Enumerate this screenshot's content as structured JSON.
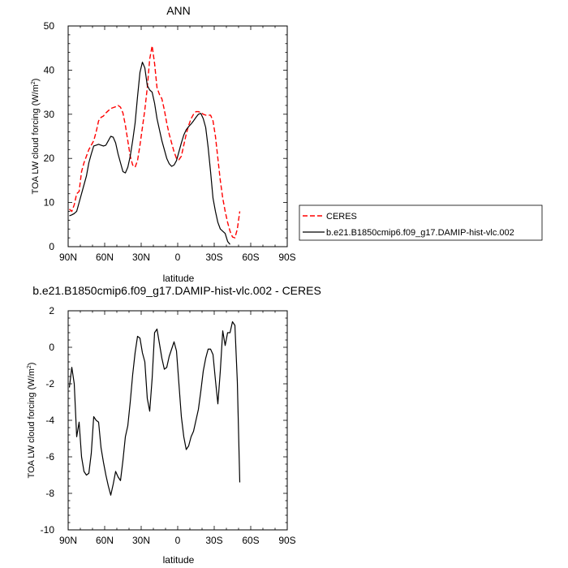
{
  "chart_data": [
    {
      "type": "line",
      "title": "ANN",
      "xlabel": "latitude",
      "ylabel": "TOA LW cloud forcing (W/m",
      "ylabel_sup": "2",
      "ylabel_close": ")",
      "xlim": [
        90,
        -90
      ],
      "ylim": [
        0,
        50
      ],
      "xticks": [
        {
          "value": 90,
          "label": "90N"
        },
        {
          "value": 60,
          "label": "60N"
        },
        {
          "value": 30,
          "label": "30N"
        },
        {
          "value": 0,
          "label": "0"
        },
        {
          "value": -30,
          "label": "30S"
        },
        {
          "value": -60,
          "label": "60S"
        },
        {
          "value": -90,
          "label": "90S"
        }
      ],
      "yticks": [
        0,
        10,
        20,
        30,
        40,
        50
      ],
      "legend_position": "right",
      "series": [
        {
          "name": "CERES",
          "color": "#ff0000",
          "dash": "dashed",
          "points": [
            [
              89,
              8.5
            ],
            [
              87,
              8
            ],
            [
              85,
              9.5
            ],
            [
              83,
              12
            ],
            [
              81,
              12.5
            ],
            [
              79,
              17
            ],
            [
              77,
              19
            ],
            [
              75,
              20.5
            ],
            [
              73,
              22
            ],
            [
              71,
              23
            ],
            [
              69,
              24
            ],
            [
              67,
              26
            ],
            [
              65,
              28.5
            ],
            [
              63,
              29.3
            ],
            [
              61,
              29.6
            ],
            [
              59,
              30.3
            ],
            [
              57,
              30.8
            ],
            [
              55,
              31.3
            ],
            [
              53,
              31.5
            ],
            [
              51,
              31.7
            ],
            [
              49,
              32
            ],
            [
              47,
              31.6
            ],
            [
              45,
              30.3
            ],
            [
              43,
              27.5
            ],
            [
              41,
              24
            ],
            [
              39,
              20.5
            ],
            [
              37,
              18.5
            ],
            [
              35,
              18
            ],
            [
              33,
              19.5
            ],
            [
              31,
              23
            ],
            [
              29,
              27
            ],
            [
              27,
              31
            ],
            [
              25,
              36
            ],
            [
              23,
              42.5
            ],
            [
              21,
              45.5
            ],
            [
              19,
              41.5
            ],
            [
              17,
              36
            ],
            [
              15,
              34.5
            ],
            [
              13,
              33.5
            ],
            [
              11,
              31
            ],
            [
              9,
              28
            ],
            [
              7,
              25.5
            ],
            [
              5,
              23.5
            ],
            [
              3,
              21.5
            ],
            [
              1,
              20
            ],
            [
              -1,
              19.7
            ],
            [
              -3,
              20.5
            ],
            [
              -5,
              23
            ],
            [
              -7,
              25.5
            ],
            [
              -9,
              27.5
            ],
            [
              -11,
              29
            ],
            [
              -13,
              30
            ],
            [
              -15,
              30.6
            ],
            [
              -17,
              30.6
            ],
            [
              -19,
              30.4
            ],
            [
              -21,
              30
            ],
            [
              -23,
              29.8
            ],
            [
              -25,
              29.8
            ],
            [
              -27,
              29.8
            ],
            [
              -29,
              28.5
            ],
            [
              -31,
              25
            ],
            [
              -33,
              20
            ],
            [
              -35,
              15
            ],
            [
              -37,
              11
            ],
            [
              -39,
              8
            ],
            [
              -41,
              5.5
            ],
            [
              -43,
              3.5
            ],
            [
              -45,
              2.2
            ],
            [
              -47,
              2
            ],
            [
              -49,
              4
            ],
            [
              -51,
              8
            ]
          ]
        },
        {
          "name": "b.e21.B1850cmip6.f09_g17.DAMIP-hist-vlc.002",
          "color": "#000000",
          "dash": "solid",
          "points": [
            [
              89,
              7
            ],
            [
              87,
              7.2
            ],
            [
              85,
              7.5
            ],
            [
              83,
              8
            ],
            [
              81,
              10
            ],
            [
              79,
              12
            ],
            [
              77,
              14
            ],
            [
              75,
              16
            ],
            [
              73,
              19
            ],
            [
              71,
              21
            ],
            [
              69,
              22.8
            ],
            [
              67,
              23
            ],
            [
              65,
              23.2
            ],
            [
              63,
              23
            ],
            [
              61,
              22.8
            ],
            [
              59,
              23
            ],
            [
              57,
              24
            ],
            [
              55,
              25
            ],
            [
              53,
              24.8
            ],
            [
              51,
              23.5
            ],
            [
              49,
              21
            ],
            [
              47,
              19
            ],
            [
              45,
              17
            ],
            [
              43,
              16.7
            ],
            [
              41,
              18
            ],
            [
              39,
              20.5
            ],
            [
              37,
              24
            ],
            [
              35,
              28
            ],
            [
              33,
              34
            ],
            [
              31,
              39.5
            ],
            [
              29,
              41.8
            ],
            [
              27,
              40.5
            ],
            [
              25,
              36.5
            ],
            [
              23,
              35.5
            ],
            [
              21,
              35
            ],
            [
              19,
              32.5
            ],
            [
              17,
              29
            ],
            [
              15,
              26.5
            ],
            [
              13,
              24
            ],
            [
              11,
              22
            ],
            [
              9,
              20
            ],
            [
              7,
              18.8
            ],
            [
              5,
              18.2
            ],
            [
              3,
              18.5
            ],
            [
              1,
              19.5
            ],
            [
              -1,
              21.5
            ],
            [
              -3,
              23.5
            ],
            [
              -5,
              25.3
            ],
            [
              -7,
              26.5
            ],
            [
              -9,
              27.2
            ],
            [
              -11,
              27.8
            ],
            [
              -13,
              28.5
            ],
            [
              -15,
              29.3
            ],
            [
              -17,
              30
            ],
            [
              -19,
              30.2
            ],
            [
              -21,
              29
            ],
            [
              -23,
              27
            ],
            [
              -25,
              22.5
            ],
            [
              -27,
              17
            ],
            [
              -29,
              11
            ],
            [
              -31,
              8
            ],
            [
              -33,
              5.5
            ],
            [
              -35,
              4
            ],
            [
              -37,
              3.5
            ],
            [
              -39,
              3
            ],
            [
              -41,
              1.2
            ],
            [
              -43,
              0.5
            ]
          ]
        }
      ]
    },
    {
      "type": "line",
      "title": "b.e21.B1850cmip6.f09_g17.DAMIP-hist-vlc.002 - CERES",
      "xlabel": "latitude",
      "ylabel": "TOA LW cloud forcing (W/m",
      "ylabel_sup": "2",
      "ylabel_close": ")",
      "xlim": [
        90,
        -90
      ],
      "ylim": [
        -10,
        2
      ],
      "xticks": [
        {
          "value": 90,
          "label": "90N"
        },
        {
          "value": 60,
          "label": "60N"
        },
        {
          "value": 30,
          "label": "30N"
        },
        {
          "value": 0,
          "label": "0"
        },
        {
          "value": -30,
          "label": "30S"
        },
        {
          "value": -60,
          "label": "60S"
        },
        {
          "value": -90,
          "label": "90S"
        }
      ],
      "yticks": [
        -10,
        -8,
        -6,
        -4,
        -2,
        0,
        2
      ],
      "series": [
        {
          "name": "",
          "color": "#000000",
          "dash": "solid",
          "points": [
            [
              89,
              -2.2
            ],
            [
              87,
              -1.1
            ],
            [
              85,
              -2
            ],
            [
              83,
              -4.9
            ],
            [
              81,
              -4.1
            ],
            [
              79,
              -6
            ],
            [
              77,
              -6.8
            ],
            [
              75,
              -7
            ],
            [
              73,
              -6.9
            ],
            [
              71,
              -5.8
            ],
            [
              69,
              -3.8
            ],
            [
              67,
              -4
            ],
            [
              65,
              -4.1
            ],
            [
              63,
              -5.5
            ],
            [
              61,
              -6.3
            ],
            [
              59,
              -7
            ],
            [
              57,
              -7.6
            ],
            [
              55,
              -8.1
            ],
            [
              53,
              -7.5
            ],
            [
              51,
              -6.8
            ],
            [
              49,
              -7.1
            ],
            [
              47,
              -7.3
            ],
            [
              45,
              -6.2
            ],
            [
              43,
              -4.9
            ],
            [
              41,
              -4.3
            ],
            [
              39,
              -3
            ],
            [
              37,
              -1.5
            ],
            [
              35,
              -0.3
            ],
            [
              33,
              0.6
            ],
            [
              31,
              0.5
            ],
            [
              29,
              -0.3
            ],
            [
              27,
              -0.8
            ],
            [
              25,
              -2.8
            ],
            [
              23,
              -3.5
            ],
            [
              21,
              -1.7
            ],
            [
              19,
              0.8
            ],
            [
              17,
              1
            ],
            [
              15,
              0.2
            ],
            [
              13,
              -0.6
            ],
            [
              11,
              -1.2
            ],
            [
              9,
              -1.1
            ],
            [
              7,
              -0.5
            ],
            [
              5,
              -0.1
            ],
            [
              3,
              0.3
            ],
            [
              1,
              -0.2
            ],
            [
              -1,
              -2
            ],
            [
              -3,
              -3.8
            ],
            [
              -5,
              -4.9
            ],
            [
              -7,
              -5.6
            ],
            [
              -9,
              -5.4
            ],
            [
              -11,
              -4.9
            ],
            [
              -13,
              -4.6
            ],
            [
              -15,
              -4
            ],
            [
              -17,
              -3.4
            ],
            [
              -19,
              -2.4
            ],
            [
              -21,
              -1.3
            ],
            [
              -23,
              -0.6
            ],
            [
              -25,
              -0.1
            ],
            [
              -27,
              -0.1
            ],
            [
              -29,
              -0.4
            ],
            [
              -31,
              -1.8
            ],
            [
              -33,
              -3.1
            ],
            [
              -35,
              -1.3
            ],
            [
              -37,
              0.9
            ],
            [
              -39,
              0.1
            ],
            [
              -41,
              0.8
            ],
            [
              -43,
              0.8
            ],
            [
              -45,
              1.4
            ],
            [
              -47,
              1.2
            ],
            [
              -49,
              -1.9
            ],
            [
              -51,
              -7.4
            ]
          ]
        }
      ]
    }
  ]
}
